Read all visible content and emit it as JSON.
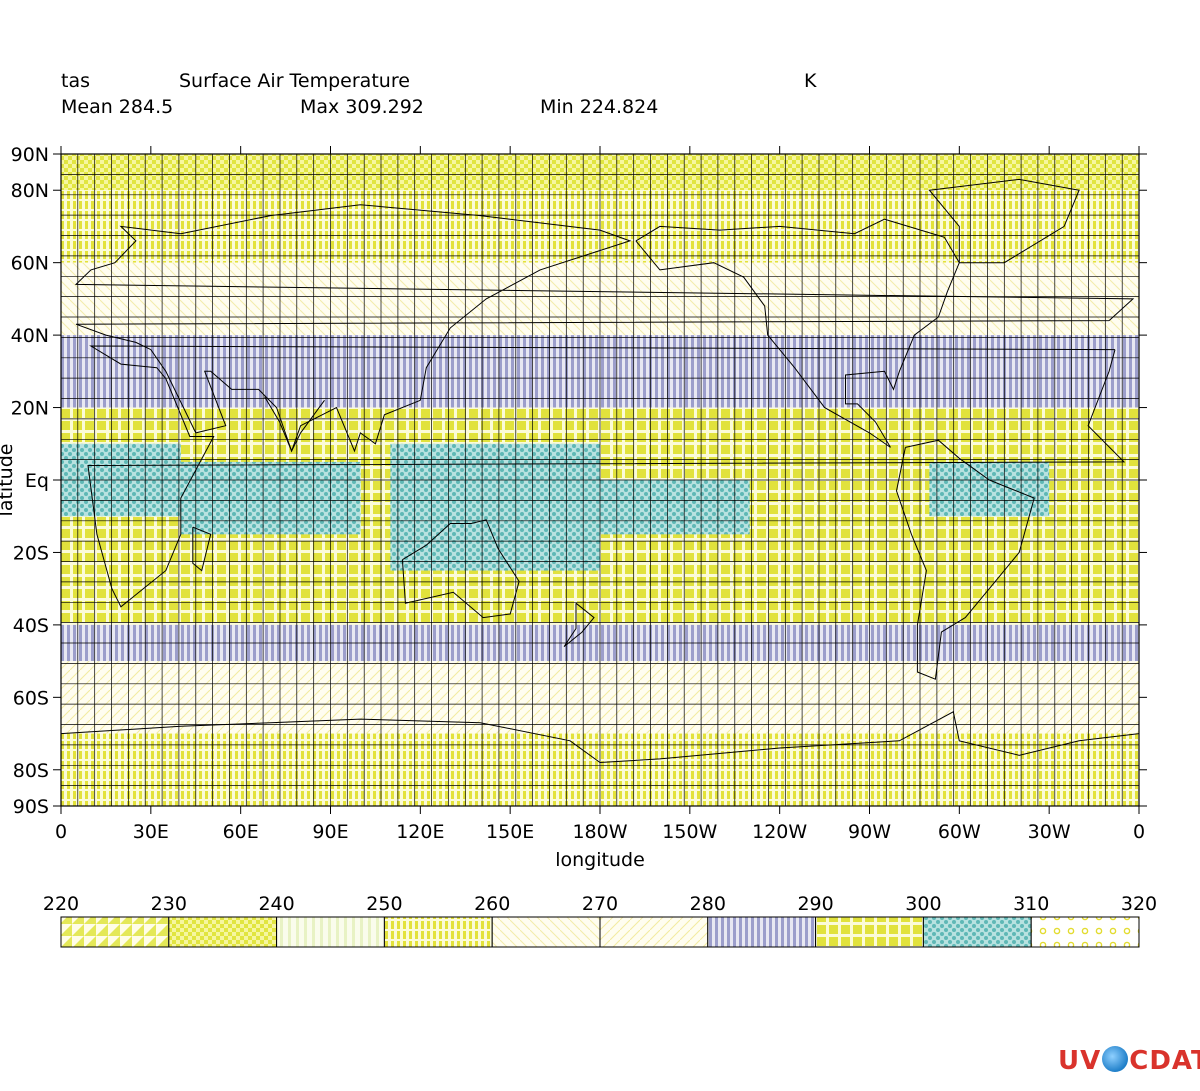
{
  "header": {
    "variable": "tas",
    "long_name": "Surface Air Temperature",
    "units": "K",
    "mean_label": "Mean 284.5",
    "max_label": "Max 309.292",
    "min_label": "Min 224.824"
  },
  "chart_data": {
    "type": "heatmap",
    "title": "Surface Air Temperature",
    "xlabel": "longitude",
    "ylabel": "latitude",
    "x_ticks": [
      "0",
      "30E",
      "60E",
      "90E",
      "120E",
      "150E",
      "180W",
      "150W",
      "120W",
      "90W",
      "60W",
      "30W",
      "0"
    ],
    "y_ticks": [
      "90N",
      "80N",
      "60N",
      "40N",
      "20N",
      "Eq",
      "20S",
      "40S",
      "60S",
      "80S",
      "90S"
    ],
    "y_tick_lat": [
      90,
      80,
      60,
      40,
      20,
      0,
      -20,
      -40,
      -60,
      -80,
      -90
    ],
    "xlim": [
      0,
      360
    ],
    "ylim": [
      -90,
      90
    ],
    "grid": true,
    "legend": {
      "placement": "bottom",
      "levels": [
        "220",
        "230",
        "240",
        "250",
        "260",
        "270",
        "280",
        "290",
        "300",
        "310",
        "320"
      ],
      "fill_colors": [
        "#e8ec50",
        "#e2e640",
        "#eef5c0",
        "#e6e43a",
        "#fbf7d0",
        "#fbf3c6",
        "#9a9ccc",
        "#e6e43a",
        "#6cc0c0",
        "#ece74a"
      ]
    },
    "bands_description_values": [
      {
        "lat_range": [
          80,
          90
        ],
        "class": 1
      },
      {
        "lat_range": [
          60,
          80
        ],
        "class": 3
      },
      {
        "lat_range": [
          40,
          60
        ],
        "class": 4
      },
      {
        "lat_range": [
          20,
          40
        ],
        "class": 6
      },
      {
        "lat_range": [
          -20,
          20
        ],
        "class": 7
      },
      {
        "lat_range": [
          -40,
          -20
        ],
        "class": 7
      },
      {
        "lat_range": [
          -50,
          -40
        ],
        "class": 6
      },
      {
        "lat_range": [
          -70,
          -50
        ],
        "class": 5
      },
      {
        "lat_range": [
          -90,
          -70
        ],
        "class": 3
      }
    ]
  },
  "logo": {
    "part1": "UV",
    "part2": "CDAT"
  }
}
